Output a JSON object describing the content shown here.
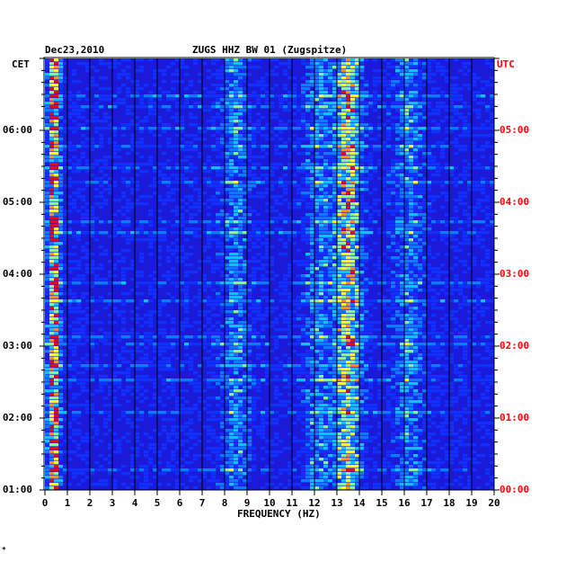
{
  "chart_data": {
    "type": "heatmap",
    "header_left": "Dec23,2010",
    "title": "ZUGS HHZ BW 01 (Zugspitze)",
    "left_timezone": "CET",
    "right_timezone": "UTC",
    "xlabel": "FREQUENCY (HZ)",
    "xlim": [
      0,
      20
    ],
    "x_ticks": [
      "0",
      "1",
      "2",
      "3",
      "4",
      "5",
      "6",
      "7",
      "8",
      "9",
      "10",
      "11",
      "12",
      "13",
      "14",
      "15",
      "16",
      "17",
      "18",
      "19",
      "20"
    ],
    "y_ticks_left": [
      "06:00",
      "05:00",
      "04:00",
      "03:00",
      "02:00",
      "01:00"
    ],
    "y_ticks_right": [
      "05:00",
      "04:00",
      "03:00",
      "02:00",
      "01:00",
      "00:00"
    ],
    "ylim_cet_hours": [
      1,
      7
    ],
    "colors": {
      "background": "#1a1ad8",
      "low": "#0000c8",
      "mid": "#00c8ff",
      "high": "#ffff00",
      "peak": "#ff0000",
      "grid": "#000000",
      "utc_text": "#ff0000"
    },
    "energy_bands_hz": [
      {
        "center": 0.4,
        "strength": 1.0
      },
      {
        "center": 8.5,
        "strength": 0.35
      },
      {
        "center": 12.2,
        "strength": 0.35
      },
      {
        "center": 13.5,
        "strength": 0.7
      },
      {
        "center": 16.2,
        "strength": 0.35
      }
    ]
  },
  "footer_mark": "*"
}
